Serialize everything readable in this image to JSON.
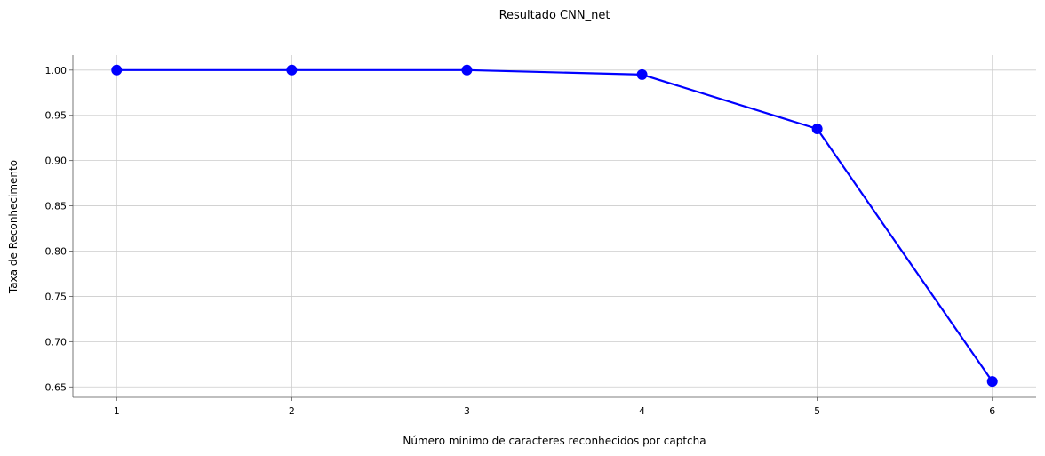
{
  "chart_data": {
    "type": "line",
    "title": "Resultado CNN_net",
    "xlabel": "Número mínimo de caracteres reconhecidos por captcha",
    "ylabel": "Taxa de Reconhecimento",
    "x": [
      1,
      2,
      3,
      4,
      5,
      6
    ],
    "series": [
      {
        "values": [
          1.0,
          1.0,
          1.0,
          0.995,
          0.935,
          0.656
        ],
        "color": "#0000ff",
        "marker": "circle"
      }
    ],
    "xlim": [
      0.75,
      6.25
    ],
    "ylim": [
      0.6385,
      1.0165
    ],
    "x_ticks": [
      "1",
      "2",
      "3",
      "4",
      "5",
      "6"
    ],
    "y_ticks": [
      "0.65",
      "0.70",
      "0.75",
      "0.80",
      "0.85",
      "0.90",
      "0.95",
      "1.00"
    ],
    "y_tick_values": [
      0.65,
      0.7,
      0.75,
      0.8,
      0.85,
      0.9,
      0.95,
      1.0
    ],
    "grid": true,
    "spines": "left-bottom"
  }
}
